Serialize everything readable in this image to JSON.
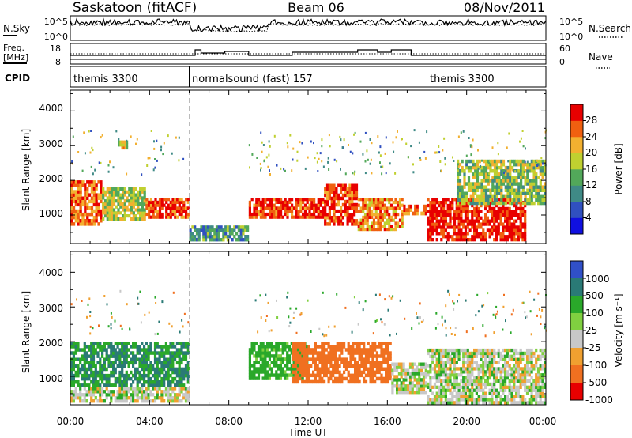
{
  "header": {
    "station": "Saskatoon (fitACF)",
    "beam": "Beam 06",
    "date": "08/Nov/2011"
  },
  "noise_panel": {
    "left_label": "N.Sky",
    "left_ticks": [
      "10^5",
      "10^0"
    ],
    "right_label": "N.Search",
    "right_ticks": [
      "10^5",
      "10^0"
    ]
  },
  "freq_panel": {
    "left_label_1": "Freq.",
    "left_label_2": "[MHz]",
    "left_ticks": [
      "18",
      "8"
    ],
    "right_label": "Nave",
    "right_ticks": [
      "60",
      "0"
    ]
  },
  "cpid_panel": {
    "label": "CPID",
    "segments": [
      {
        "text": "themis 3300",
        "start_hour": 0
      },
      {
        "text": "normalsound (fast) 157",
        "start_hour": 6
      },
      {
        "text": "themis 3300",
        "start_hour": 18
      }
    ]
  },
  "power_panel": {
    "ylabel": "Slant Range [km]",
    "yticks": [
      "1000",
      "2000",
      "3000",
      "4000"
    ],
    "colorbar_label": "Power [dB]",
    "colorbar_ticks": [
      "4",
      "8",
      "12",
      "16",
      "20",
      "24",
      "28"
    ]
  },
  "velocity_panel": {
    "ylabel": "Slant Range [km]",
    "yticks": [
      "1000",
      "2000",
      "3000",
      "4000"
    ],
    "colorbar_label": "Velocity [m s⁻¹]",
    "colorbar_ticks": [
      "1000",
      "500",
      "100",
      "25",
      "-25",
      "-100",
      "-500",
      "-1000"
    ]
  },
  "xaxis": {
    "label": "Time UT",
    "ticks": [
      "00:00",
      "04:00",
      "08:00",
      "12:00",
      "16:00",
      "20:00",
      "00:00"
    ]
  },
  "chart_data": [
    {
      "type": "heatmap",
      "title": "Saskatoon (fitACF) Beam 06 08/Nov/2011",
      "xlabel": "Time UT",
      "ylabel": "Slant Range [km]",
      "xlim": [
        0,
        24
      ],
      "ylim": [
        180,
        4600
      ],
      "colorbar_label": "Power [dB]",
      "colorbar_range": [
        0,
        32
      ],
      "power_bands_db": [
        {
          "t_start": 0.0,
          "t_end": 1.6,
          "range_km": [
            700,
            2000
          ],
          "db": 26
        },
        {
          "t_start": 1.6,
          "t_end": 3.8,
          "range_km": [
            850,
            1800
          ],
          "db": 18
        },
        {
          "t_start": 2.4,
          "t_end": 2.9,
          "range_km": [
            2900,
            3150
          ],
          "db": 20
        },
        {
          "t_start": 3.8,
          "t_end": 6.0,
          "range_km": [
            900,
            1500
          ],
          "db": 28
        },
        {
          "t_start": 6.0,
          "t_end": 9.0,
          "range_km": [
            250,
            700
          ],
          "db": 12
        },
        {
          "t_start": 9.0,
          "t_end": 12.8,
          "range_km": [
            900,
            1500
          ],
          "db": 28
        },
        {
          "t_start": 12.8,
          "t_end": 14.5,
          "range_km": [
            700,
            1900
          ],
          "db": 28
        },
        {
          "t_start": 14.5,
          "t_end": 16.8,
          "range_km": [
            550,
            1500
          ],
          "db": 24
        },
        {
          "t_start": 16.8,
          "t_end": 18.0,
          "range_km": [
            1000,
            1300
          ],
          "db": 28
        },
        {
          "t_start": 18.0,
          "t_end": 23.0,
          "range_km": [
            250,
            1500
          ],
          "db": 30
        },
        {
          "t_start": 19.5,
          "t_end": 24.0,
          "range_km": [
            1300,
            2600
          ],
          "db": 16
        }
      ]
    },
    {
      "type": "heatmap",
      "xlabel": "Time UT",
      "ylabel": "Slant Range [km]",
      "xlim": [
        0,
        24
      ],
      "ylim": [
        180,
        4600
      ],
      "colorbar_label": "Velocity [m s-1]",
      "colorbar_levels": [
        -1000,
        -500,
        -100,
        -25,
        25,
        100,
        500,
        1000
      ],
      "velocity_bands": [
        {
          "t_start": 0.0,
          "t_end": 6.0,
          "range_km": [
            700,
            2000
          ],
          "v": 100
        },
        {
          "t_start": 0.0,
          "t_end": 6.0,
          "range_km": [
            250,
            700
          ],
          "v": 0
        },
        {
          "t_start": 9.0,
          "t_end": 12.0,
          "range_km": [
            900,
            2000
          ],
          "v": 60
        },
        {
          "t_start": 11.2,
          "t_end": 16.2,
          "range_km": [
            800,
            2000
          ],
          "v": -150
        },
        {
          "t_start": 16.2,
          "t_end": 18.0,
          "range_km": [
            500,
            1400
          ],
          "v": 0
        },
        {
          "t_start": 18.0,
          "t_end": 24.0,
          "range_km": [
            200,
            1800
          ],
          "v": 0
        }
      ]
    }
  ],
  "colors": {
    "power_scale": [
      "#1010e0",
      "#3050c0",
      "#3f8a86",
      "#52a85a",
      "#c0d030",
      "#f2b030",
      "#f06010",
      "#e80000"
    ],
    "velocity_scale": [
      "#3050c8",
      "#2a7a76",
      "#2aa82a",
      "#80d040",
      "#c8c8c8",
      "#f0a030",
      "#f07020",
      "#e80000"
    ],
    "marker_line": "#bbbbbb"
  }
}
